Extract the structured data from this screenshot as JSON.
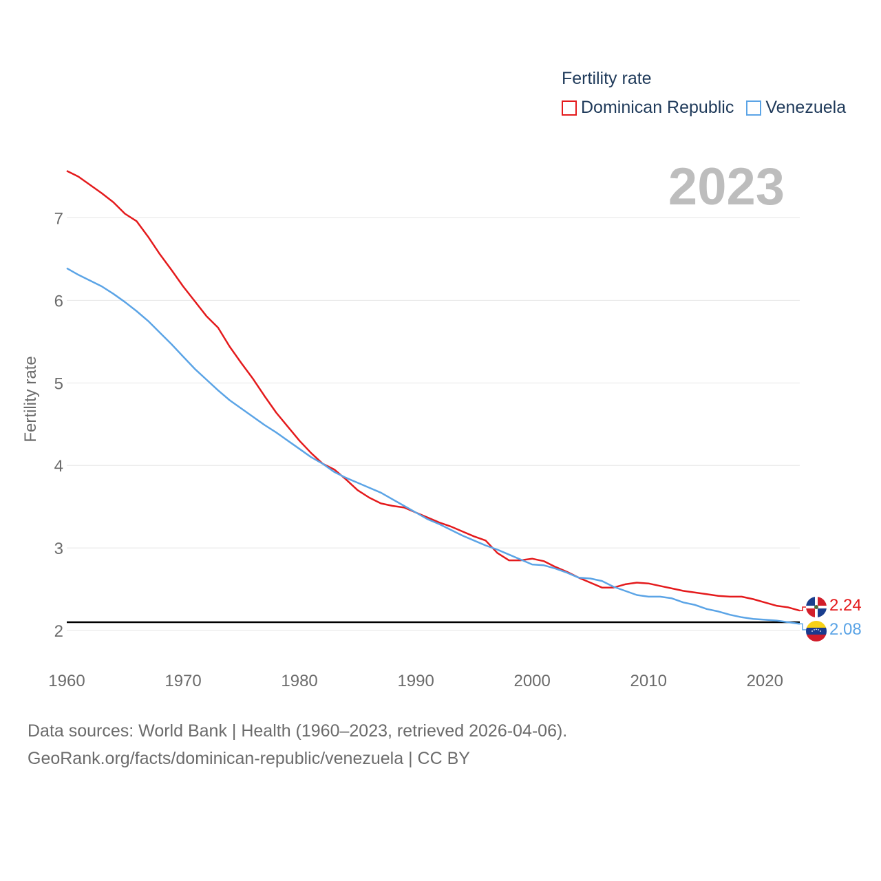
{
  "legend": {
    "title": "Fertility rate",
    "items": [
      {
        "label": "Dominican Republic",
        "color": "#e41a1c"
      },
      {
        "label": "Venezuela",
        "color": "#5ba4e6"
      }
    ]
  },
  "year_label": "2023",
  "end_labels": {
    "dominican_republic": "2.24",
    "venezuela": "2.08"
  },
  "footer": {
    "line1": "Data sources: World Bank | Health (1960–2023, retrieved 2026-04-06).",
    "line2": "GeoRank.org/facts/dominican-republic/venezuela | CC BY"
  },
  "flags": [
    "dominican-republic-flag-icon",
    "venezuela-flag-icon"
  ],
  "chart_data": {
    "type": "line",
    "title": "",
    "xlabel": "",
    "ylabel": "Fertility rate",
    "xlim": [
      1960,
      2023
    ],
    "ylim": [
      1.8,
      7.6
    ],
    "x_ticks": [
      1960,
      1970,
      1980,
      1990,
      2000,
      2010,
      2020
    ],
    "y_ticks": [
      2,
      3,
      4,
      5,
      6,
      7
    ],
    "grid": true,
    "reference_line": 2.1,
    "series": [
      {
        "name": "Dominican Republic",
        "color": "#e41a1c",
        "x": [
          1960,
          1961,
          1962,
          1963,
          1964,
          1965,
          1966,
          1967,
          1968,
          1969,
          1970,
          1971,
          1972,
          1973,
          1974,
          1975,
          1976,
          1977,
          1978,
          1979,
          1980,
          1981,
          1982,
          1983,
          1984,
          1985,
          1986,
          1987,
          1988,
          1989,
          1990,
          1991,
          1992,
          1993,
          1994,
          1995,
          1996,
          1997,
          1998,
          1999,
          2000,
          2001,
          2002,
          2003,
          2004,
          2005,
          2006,
          2007,
          2008,
          2009,
          2010,
          2011,
          2012,
          2013,
          2014,
          2015,
          2016,
          2017,
          2018,
          2019,
          2020,
          2021,
          2022,
          2023
        ],
        "values": [
          7.57,
          7.5,
          7.4,
          7.3,
          7.19,
          7.05,
          6.96,
          6.77,
          6.56,
          6.37,
          6.17,
          5.99,
          5.81,
          5.67,
          5.44,
          5.24,
          5.05,
          4.84,
          4.64,
          4.47,
          4.3,
          4.15,
          4.02,
          3.95,
          3.83,
          3.7,
          3.61,
          3.54,
          3.51,
          3.49,
          3.43,
          3.37,
          3.31,
          3.26,
          3.2,
          3.14,
          3.09,
          2.94,
          2.85,
          2.85,
          2.87,
          2.84,
          2.77,
          2.71,
          2.64,
          2.58,
          2.52,
          2.52,
          2.56,
          2.58,
          2.57,
          2.54,
          2.51,
          2.48,
          2.46,
          2.44,
          2.42,
          2.41,
          2.41,
          2.38,
          2.34,
          2.3,
          2.28,
          2.24
        ]
      },
      {
        "name": "Venezuela",
        "color": "#5ba4e6",
        "x": [
          1960,
          1961,
          1962,
          1963,
          1964,
          1965,
          1966,
          1967,
          1968,
          1969,
          1970,
          1971,
          1972,
          1973,
          1974,
          1975,
          1976,
          1977,
          1978,
          1979,
          1980,
          1981,
          1982,
          1983,
          1984,
          1985,
          1986,
          1987,
          1988,
          1989,
          1990,
          1991,
          1992,
          1993,
          1994,
          1995,
          1996,
          1997,
          1998,
          1999,
          2000,
          2001,
          2002,
          2003,
          2004,
          2005,
          2006,
          2007,
          2008,
          2009,
          2010,
          2011,
          2012,
          2013,
          2014,
          2015,
          2016,
          2017,
          2018,
          2019,
          2020,
          2021,
          2022,
          2023
        ],
        "values": [
          6.39,
          6.31,
          6.24,
          6.17,
          6.08,
          5.98,
          5.87,
          5.75,
          5.61,
          5.47,
          5.32,
          5.17,
          5.04,
          4.91,
          4.79,
          4.69,
          4.59,
          4.49,
          4.4,
          4.3,
          4.2,
          4.1,
          4.02,
          3.92,
          3.85,
          3.79,
          3.73,
          3.67,
          3.59,
          3.51,
          3.43,
          3.35,
          3.29,
          3.22,
          3.15,
          3.09,
          3.03,
          2.98,
          2.92,
          2.86,
          2.8,
          2.79,
          2.75,
          2.7,
          2.64,
          2.63,
          2.6,
          2.53,
          2.48,
          2.43,
          2.41,
          2.41,
          2.39,
          2.34,
          2.31,
          2.26,
          2.23,
          2.19,
          2.16,
          2.14,
          2.13,
          2.12,
          2.1,
          2.08
        ]
      }
    ]
  }
}
